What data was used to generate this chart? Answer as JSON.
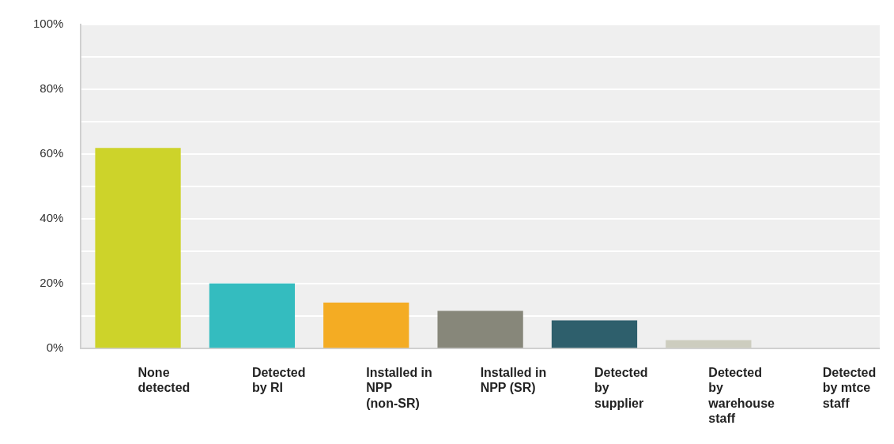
{
  "chart_data": {
    "type": "bar",
    "categories": [
      "None detected",
      "Detected by RI",
      "Installed in NPP (non-SR)",
      "Installed in NPP (SR)",
      "Detected by supplier",
      "Detected by warehouse staff",
      "Detected by mtce staff"
    ],
    "values": [
      61.9,
      20.1,
      14.2,
      11.6,
      8.7,
      2.6,
      0
    ],
    "colors": [
      "#cdd32a",
      "#34bcbf",
      "#f4ac23",
      "#87877a",
      "#2e5f6c",
      "#cdcdbf",
      "#9e9e9e"
    ],
    "ylim": [
      0,
      100
    ],
    "yticks": [
      {
        "value": 0,
        "label": "0%"
      },
      {
        "value": 10,
        "label": null
      },
      {
        "value": 20,
        "label": "20%"
      },
      {
        "value": 30,
        "label": null
      },
      {
        "value": 40,
        "label": "40%"
      },
      {
        "value": 50,
        "label": null
      },
      {
        "value": 60,
        "label": "60%"
      },
      {
        "value": 70,
        "label": null
      },
      {
        "value": 80,
        "label": "80%"
      },
      {
        "value": 90,
        "label": null
      },
      {
        "value": 100,
        "label": "100%"
      }
    ],
    "grid": "y",
    "legend": false
  }
}
